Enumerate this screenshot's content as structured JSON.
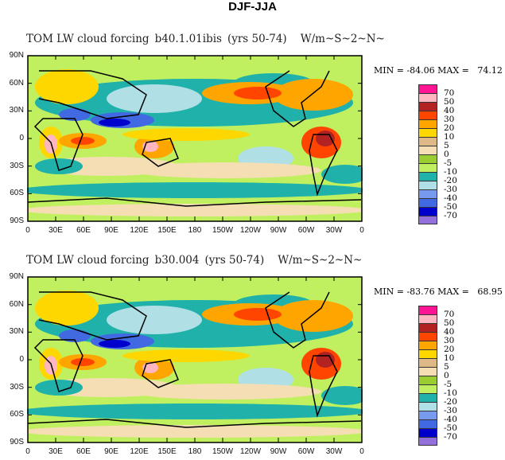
{
  "title": "DJF-JJA",
  "panels": [
    {
      "var_title": "TOM LW cloud forcing",
      "case": "b40.1.01ibis",
      "years": "(yrs 50-74)",
      "units": "W/m~S~2~N~",
      "min_label": "MIN = ",
      "min": "-84.06",
      "max_label": "MAX = ",
      "max": "74.12"
    },
    {
      "var_title": "TOM LW cloud forcing",
      "case": "b30.004",
      "years": "(yrs 50-74)",
      "units": "W/m~S~2~N~",
      "min_label": "MIN = ",
      "min": "-83.76",
      "max_label": "MAX = ",
      "max": "68.95"
    }
  ],
  "lat_ticks": [
    "90N",
    "60N",
    "30N",
    "0",
    "30S",
    "60S",
    "90S"
  ],
  "lon_ticks": [
    "0",
    "30E",
    "60E",
    "90E",
    "120E",
    "150E",
    "180",
    "150W",
    "120W",
    "90W",
    "60W",
    "30W",
    "0"
  ],
  "colorbar": {
    "colors": [
      "#ff1493",
      "#ffb6c1",
      "#b22222",
      "#ff4500",
      "#ffa500",
      "#ffd700",
      "#deb887",
      "#f5deb3",
      "#9acd32",
      "#c0f060",
      "#20b2aa",
      "#b0e0e6",
      "#7799ee",
      "#4169e1",
      "#0000cd",
      "#9370db"
    ],
    "labels": [
      "70",
      "50",
      "40",
      "30",
      "20",
      "10",
      "5",
      "0",
      "-5",
      "-10",
      "-20",
      "-30",
      "-40",
      "-50",
      "-70"
    ]
  }
}
